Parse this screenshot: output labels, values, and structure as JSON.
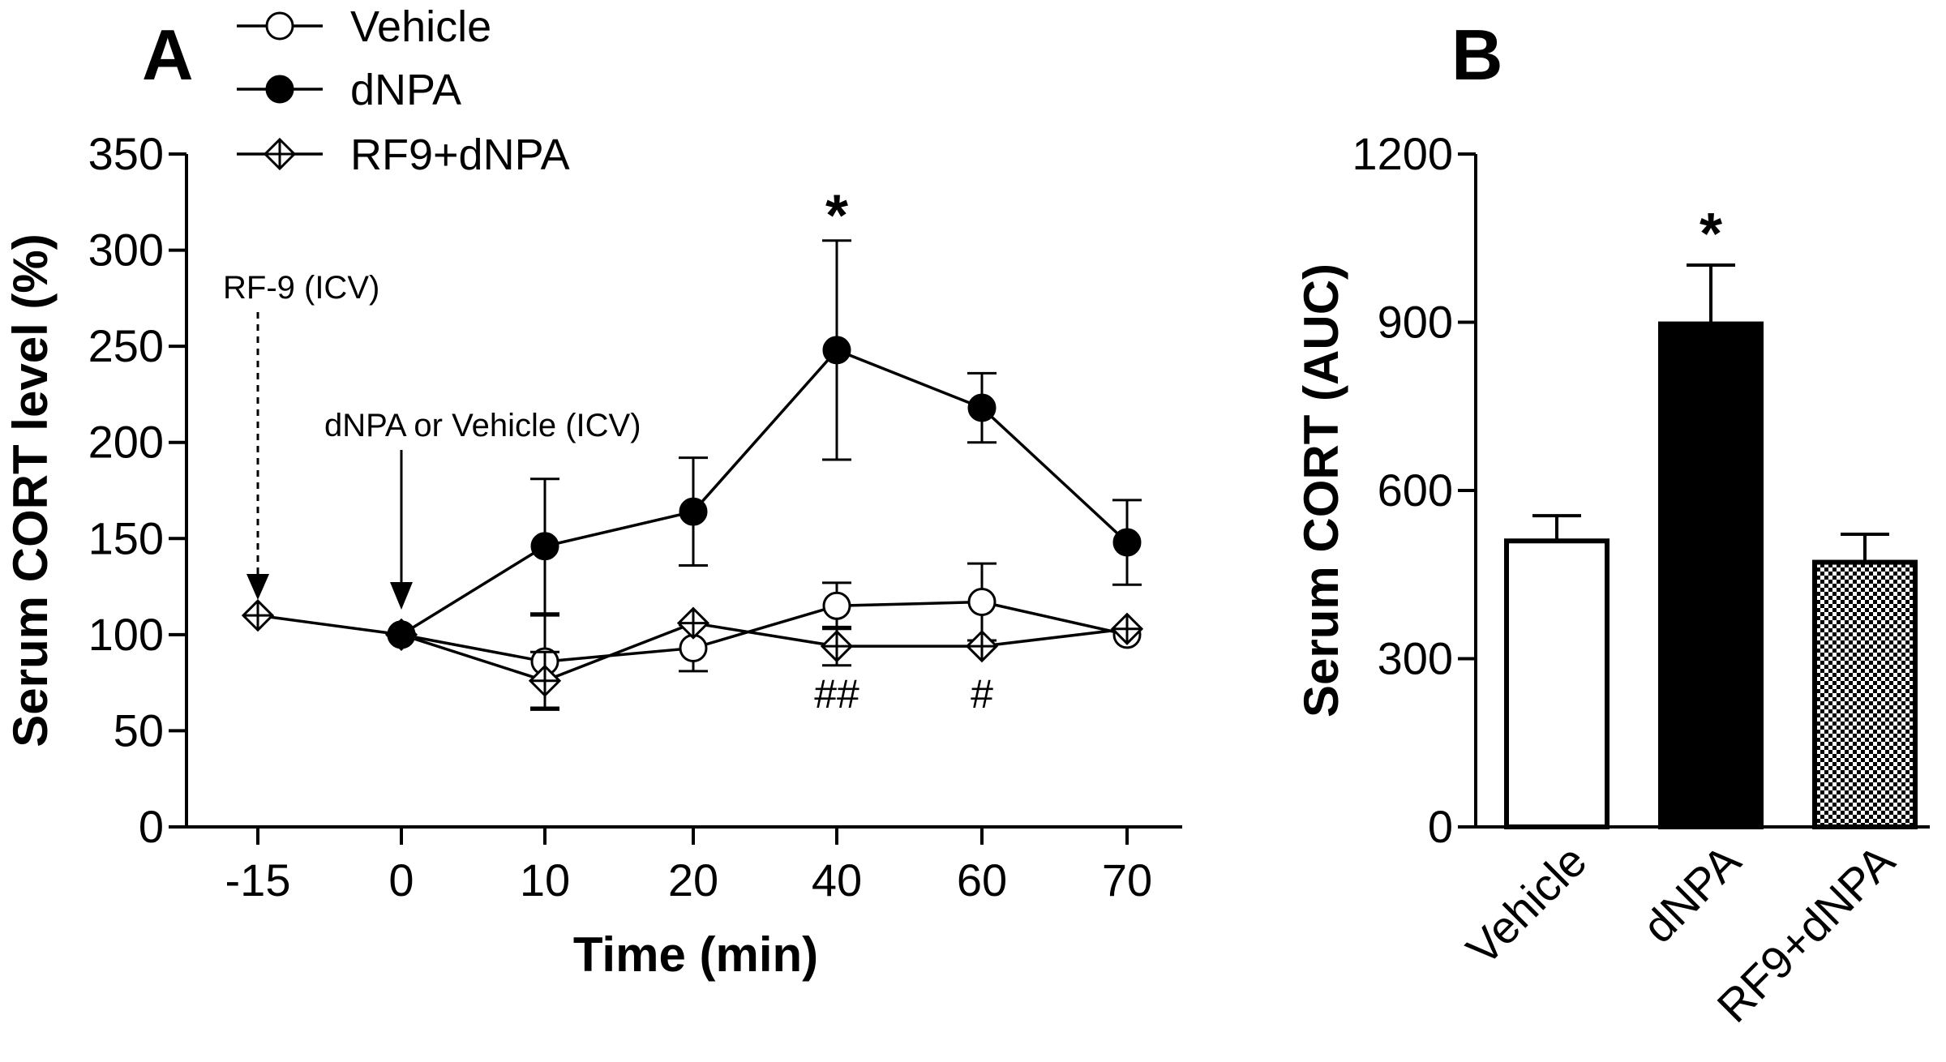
{
  "chart_data": [
    {
      "type": "line",
      "panel": "A",
      "title": "",
      "xlabel": "Time (min)",
      "ylabel": "Serum CORT level (%)",
      "ylim": [
        0,
        350
      ],
      "yticks": [
        0,
        50,
        100,
        150,
        200,
        250,
        300,
        350
      ],
      "categories": [
        "-15",
        "0",
        "10",
        "20",
        "40",
        "60",
        "70"
      ],
      "legend_position": "top-left",
      "series": [
        {
          "name": "Vehicle",
          "marker": "open-circle",
          "values": [
            null,
            100,
            86,
            93,
            115,
            117,
            100
          ],
          "errors": [
            null,
            0,
            24,
            12,
            12,
            20,
            0
          ]
        },
        {
          "name": "dNPA",
          "marker": "filled-circle",
          "values": [
            null,
            100,
            146,
            164,
            248,
            218,
            148
          ],
          "errors": [
            null,
            0,
            35,
            28,
            57,
            18,
            22
          ]
        },
        {
          "name": "RF9+dNPA",
          "marker": "open-diamond",
          "values": [
            110,
            100,
            76,
            106,
            94,
            94,
            103
          ],
          "errors": [
            0,
            0,
            15,
            0,
            10,
            0,
            0
          ]
        }
      ],
      "annotations": [
        {
          "text": "RF-9 (ICV)",
          "category": "-15",
          "style": "dashed-arrow"
        },
        {
          "text": "dNPA or Vehicle (ICV)",
          "category": "0",
          "style": "solid-arrow"
        },
        {
          "text": "*",
          "category": "40",
          "above_value": 305
        },
        {
          "text": "##",
          "category": "40",
          "at_value": 62
        },
        {
          "text": "#",
          "category": "60",
          "at_value": 62
        }
      ]
    },
    {
      "type": "bar",
      "panel": "B",
      "title": "",
      "xlabel": "",
      "ylabel": "Serum CORT (AUC)",
      "ylim": [
        0,
        1200
      ],
      "yticks": [
        0,
        300,
        600,
        900,
        1200
      ],
      "categories": [
        "Vehicle",
        "dNPA",
        "RF9+dNPA"
      ],
      "values": [
        510,
        897,
        472
      ],
      "errors": [
        45,
        105,
        50
      ],
      "fills": [
        "white",
        "black",
        "checkered"
      ],
      "annotations": [
        {
          "text": "*",
          "category": "dNPA"
        }
      ]
    }
  ]
}
